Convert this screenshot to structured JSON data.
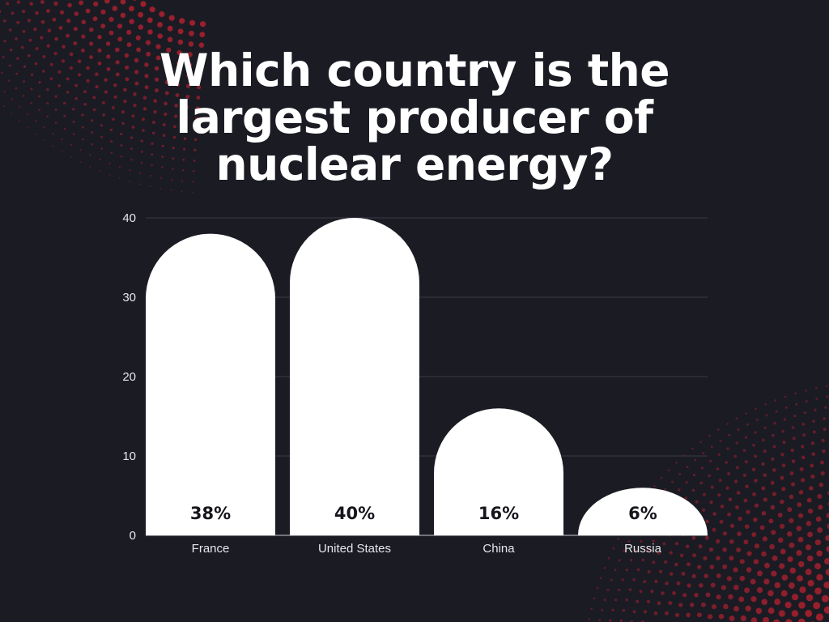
{
  "page": {
    "title_lines": [
      "Which country is the",
      "largest producer of",
      "nuclear energy?"
    ]
  },
  "colors": {
    "background": "#1b1b24",
    "bar": "#ffffff",
    "dots": "#a3202e",
    "grid": "#3b3b46",
    "text": "#ffffff"
  },
  "chart_data": {
    "type": "bar",
    "title": "Which country is the largest producer of nuclear energy?",
    "categories": [
      "France",
      "United States",
      "China",
      "Russia"
    ],
    "values": [
      38,
      40,
      16,
      6
    ],
    "data_labels": [
      "38%",
      "40%",
      "16%",
      "6%"
    ],
    "ylim": [
      0,
      40
    ],
    "yticks": [
      0,
      10,
      20,
      30,
      40
    ],
    "xlabel": "",
    "ylabel": "",
    "grid": true,
    "legend": "none"
  }
}
